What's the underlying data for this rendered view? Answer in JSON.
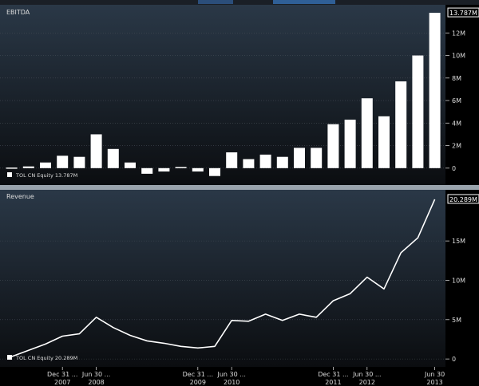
{
  "chart_data": [
    {
      "type": "bar",
      "title": "EBITDA",
      "legend_label": "TOL CN Equity  13.787M",
      "last_value_label": "13.787M",
      "ylim": [
        -1.5,
        14.5
      ],
      "yticks": [
        0,
        2,
        4,
        6,
        8,
        10,
        12
      ],
      "ytick_labels": [
        "0",
        "2M",
        "4M",
        "6M",
        "8M",
        "10M",
        "12M"
      ],
      "values": [
        0.05,
        0.15,
        0.5,
        1.1,
        1.0,
        3.0,
        1.7,
        0.5,
        -0.5,
        -0.3,
        0.1,
        -0.3,
        -0.7,
        1.4,
        0.8,
        1.2,
        1.0,
        1.8,
        1.8,
        3.9,
        4.3,
        6.2,
        4.6,
        7.7,
        10.0,
        13.787
      ],
      "grid": true,
      "legend_position": "bottom-left"
    },
    {
      "type": "line",
      "title": "Revenue",
      "legend_label": "TOL CN Equity  20.289M",
      "last_value_label": "20.289M",
      "ylim": [
        -1.0,
        21.5
      ],
      "yticks": [
        0,
        5,
        10,
        15
      ],
      "ytick_labels": [
        "0",
        "5M",
        "10M",
        "15M"
      ],
      "values": [
        0.3,
        1.1,
        1.9,
        2.9,
        3.2,
        5.3,
        4.0,
        3.0,
        2.3,
        2.0,
        1.6,
        1.4,
        1.6,
        4.9,
        4.8,
        5.7,
        4.9,
        5.7,
        5.3,
        7.4,
        8.3,
        10.4,
        8.9,
        13.5,
        15.4,
        20.289
      ],
      "x_axis": [
        {
          "index": 3,
          "top": "Dec 31 ...",
          "bottom": "2007"
        },
        {
          "index": 5,
          "top": "Jun 30 ...",
          "bottom": "2008"
        },
        {
          "index": 11,
          "top": "Dec 31 ...",
          "bottom": "2009"
        },
        {
          "index": 13,
          "top": "Jun 30 ...",
          "bottom": "2010"
        },
        {
          "index": 19,
          "top": "Dec 31 ...",
          "bottom": "2011"
        },
        {
          "index": 21,
          "top": "Jun 30 ...",
          "bottom": "2012"
        },
        {
          "index": 25,
          "top": "Jun 30",
          "bottom": "2013"
        }
      ],
      "grid": true,
      "legend_position": "bottom-left"
    }
  ],
  "colors": {
    "panel_top": "#2a3847",
    "panel_bottom": "#0b0d10",
    "bar": "#ffffff",
    "line": "#ffffff",
    "text": "#dddddd",
    "grid": "#454c55",
    "tab_accent": "#2f5f96"
  }
}
